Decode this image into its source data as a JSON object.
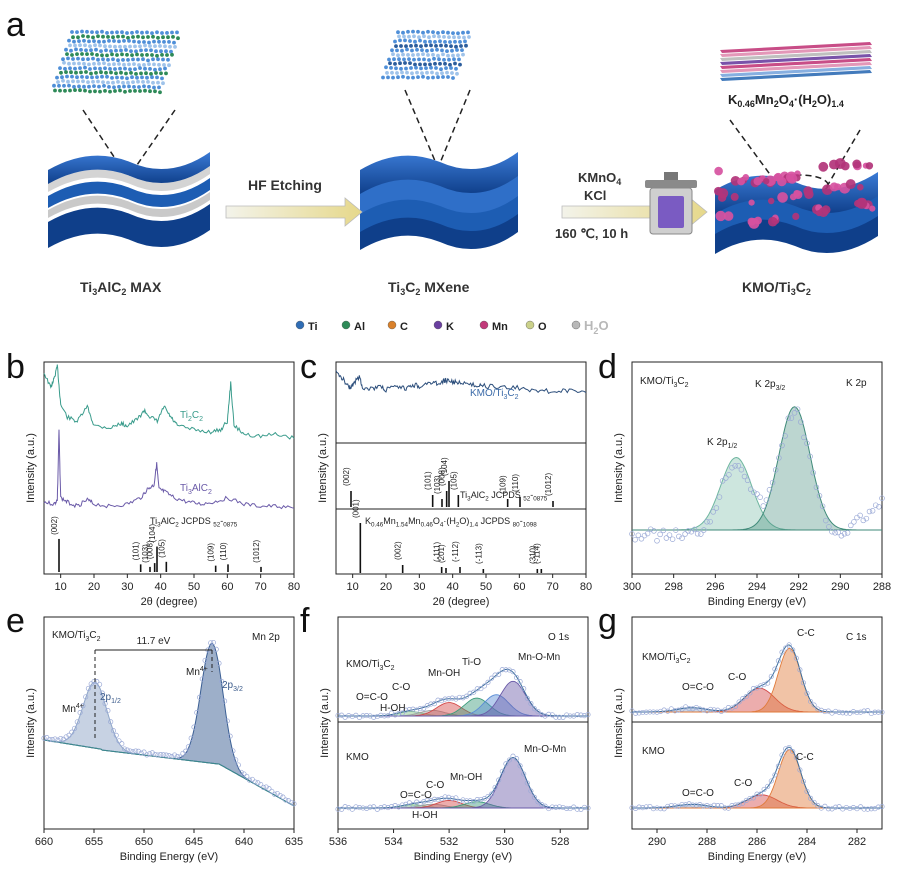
{
  "panel_a": {
    "letter": "a",
    "stage1_label": "Ti3AlC2 MAX",
    "stage2_label": "Ti3C2 MXene",
    "stage3_label": "KMO/Ti3C2",
    "arrow1_label": "HF Etching",
    "arrow2_line1": "KMnO4",
    "arrow2_line2": "KCl",
    "arrow2_line3": "160 ℃, 10 h",
    "formula": "K0.46Mn2O4·(H2O)1.4",
    "legend": [
      {
        "label": "Ti",
        "color": "#2f6db5"
      },
      {
        "label": "Al",
        "color": "#2e8a58"
      },
      {
        "label": "C",
        "color": "#d9802a"
      },
      {
        "label": "K",
        "color": "#6a3fa0"
      },
      {
        "label": "Mn",
        "color": "#c23a7a"
      },
      {
        "label": "O",
        "color": "#cbd18a"
      },
      {
        "label": "H2O",
        "color": "#b8b8b8"
      }
    ]
  },
  "chart_data": [
    {
      "panel": "b",
      "type": "line",
      "xlabel": "2θ (degree)",
      "ylabel": "Intensity (a.u.)",
      "xlim": [
        5,
        80
      ],
      "xticks": [
        10,
        20,
        30,
        40,
        50,
        60,
        70,
        80
      ],
      "series": [
        {
          "name": "Ti2C2",
          "color": "#3a9c8c",
          "x": [
            5,
            7,
            8,
            9,
            10,
            12,
            15,
            18,
            20,
            25,
            28,
            30,
            33,
            35,
            37,
            39,
            41,
            43,
            45,
            50,
            55,
            58,
            60,
            61,
            62,
            65,
            70,
            75,
            80
          ],
          "y": [
            0.95,
            0.88,
            0.92,
            0.98,
            0.8,
            0.74,
            0.72,
            0.79,
            0.7,
            0.69,
            0.71,
            0.7,
            0.73,
            0.77,
            0.74,
            0.72,
            0.79,
            0.74,
            0.7,
            0.68,
            0.67,
            0.68,
            0.72,
            0.9,
            0.7,
            0.66,
            0.65,
            0.66,
            0.64
          ]
        },
        {
          "name": "Ti3AlC2",
          "color": "#6a5aa8",
          "x": [
            5,
            8,
            9,
            9.5,
            10,
            12,
            15,
            18,
            20,
            25,
            30,
            34,
            36,
            38,
            38.8,
            39.5,
            41,
            44,
            48,
            52,
            56,
            60,
            65,
            70,
            75,
            80
          ],
          "y": [
            0.34,
            0.33,
            0.35,
            0.68,
            0.36,
            0.34,
            0.32,
            0.35,
            0.33,
            0.32,
            0.33,
            0.36,
            0.4,
            0.42,
            0.52,
            0.4,
            0.39,
            0.36,
            0.34,
            0.33,
            0.34,
            0.36,
            0.33,
            0.32,
            0.32,
            0.31
          ]
        }
      ],
      "reference_label": "Ti3AlC2 JCPDS # 52-0875",
      "reference_peaks": [
        {
          "x": 9.5,
          "h": 0.26,
          "label": "(002)"
        },
        {
          "x": 34.0,
          "h": 0.06,
          "label": "(101)"
        },
        {
          "x": 36.8,
          "h": 0.04,
          "label": "(103)"
        },
        {
          "x": 38.9,
          "h": 0.2,
          "label": "(104)"
        },
        {
          "x": 38.2,
          "h": 0.07,
          "label": "(008)"
        },
        {
          "x": 41.7,
          "h": 0.08,
          "label": "(105)"
        },
        {
          "x": 56.5,
          "h": 0.05,
          "label": "(109)"
        },
        {
          "x": 60.2,
          "h": 0.06,
          "label": "(110)"
        },
        {
          "x": 70.1,
          "h": 0.04,
          "label": "(1012)"
        }
      ]
    },
    {
      "panel": "c",
      "type": "line",
      "xlabel": "2θ (degree)",
      "ylabel": "Intensity (a.u.)",
      "xlim": [
        5,
        80
      ],
      "xticks": [
        10,
        20,
        30,
        40,
        50,
        60,
        70,
        80
      ],
      "series": [
        {
          "name": "KMO/Ti3C2",
          "color": "#2d4f7c",
          "x": [
            5,
            7,
            9,
            10,
            12,
            13,
            15,
            18,
            20,
            23,
            26,
            28,
            30,
            33,
            35,
            37,
            38,
            40,
            42,
            45,
            48,
            50,
            55,
            60,
            65,
            70,
            75,
            80
          ],
          "y": [
            0.88,
            0.82,
            0.72,
            0.74,
            0.84,
            0.72,
            0.7,
            0.72,
            0.69,
            0.72,
            0.7,
            0.75,
            0.73,
            0.77,
            0.76,
            0.78,
            0.8,
            0.77,
            0.78,
            0.74,
            0.75,
            0.73,
            0.72,
            0.71,
            0.69,
            0.67,
            0.68,
            0.66
          ]
        }
      ],
      "reference_label_1": "Ti3AlC2 JCPDS # 52-0875",
      "reference_label_2": "K0.46Mn1.54Mn0.46O4·(H2O)1.4 JCPDS # 80-1098",
      "reference_peaks_1": [
        {
          "x": 9.5,
          "label": "(002)"
        },
        {
          "x": 34.0,
          "label": "(101)"
        },
        {
          "x": 36.8,
          "label": "(103)"
        },
        {
          "x": 38.2,
          "label": "(008)"
        },
        {
          "x": 38.9,
          "label": "(104)"
        },
        {
          "x": 41.7,
          "label": "(105)"
        },
        {
          "x": 56.5,
          "label": "(109)"
        },
        {
          "x": 60.2,
          "label": "(110)"
        },
        {
          "x": 70.1,
          "label": "(1012)"
        }
      ],
      "reference_peaks_2": [
        {
          "x": 12.3,
          "label": "(001)"
        },
        {
          "x": 25.0,
          "label": "(002)"
        },
        {
          "x": 36.7,
          "label": "(-111)"
        },
        {
          "x": 38.0,
          "label": "(201)"
        },
        {
          "x": 42.2,
          "label": "(-112)"
        },
        {
          "x": 49.2,
          "label": "(-113)"
        },
        {
          "x": 65.4,
          "label": "(310)"
        },
        {
          "x": 66.6,
          "label": "(-114)"
        }
      ]
    },
    {
      "panel": "d",
      "type": "line",
      "title": "KMO/Ti3C2",
      "region": "K 2p",
      "xlabel": "Binding Energy (eV)",
      "ylabel": "Intensity (a.u.)",
      "xlim": [
        300,
        288
      ],
      "xticks": [
        300,
        298,
        296,
        294,
        292,
        290,
        288
      ],
      "peaks": [
        {
          "name": "K 2p1/2",
          "center": 295.0,
          "height": 0.5,
          "width": 0.75,
          "color": "#6fb6a0"
        },
        {
          "name": "K 2p3/2",
          "center": 292.2,
          "height": 0.85,
          "width": 0.75,
          "color": "#3f8a79"
        }
      ]
    },
    {
      "panel": "e",
      "type": "line",
      "title": "KMO/Ti3C2",
      "region": "Mn 2p",
      "xlabel": "Binding Energy (eV)",
      "ylabel": "Intensity (a.u.)",
      "xlim": [
        660,
        635
      ],
      "xticks": [
        660,
        655,
        650,
        645,
        640,
        635
      ],
      "splitting": "11.7 eV",
      "peaks": [
        {
          "name": "2p1/2",
          "ion": "Mn4+",
          "center": 654.9,
          "height": 0.55,
          "width": 1.2,
          "color": "#8fa6c8"
        },
        {
          "name": "2p3/2",
          "ion": "Mn4+",
          "center": 643.2,
          "height": 1.0,
          "width": 1.1,
          "color": "#3b5f94"
        }
      ]
    },
    {
      "panel": "f",
      "type": "line",
      "region": "O 1s",
      "xlabel": "Binding Energy (eV)",
      "ylabel": "Intensity (a.u.)",
      "xlim": [
        536,
        527
      ],
      "xticks": [
        536,
        534,
        532,
        530,
        528
      ],
      "samples": [
        {
          "name": "KMO/Ti3C2",
          "components": [
            {
              "name": "O=C-O",
              "center": 533.4,
              "height": 0.08,
              "color": "#7cc47f"
            },
            {
              "name": "H-OH",
              "center": 532.6,
              "height": 0.1,
              "color": "#a0a0a0"
            },
            {
              "name": "C-O",
              "center": 532.0,
              "height": 0.24,
              "color": "#d44a4a"
            },
            {
              "name": "Mn-OH",
              "center": 531.0,
              "height": 0.32,
              "color": "#3a9a7a"
            },
            {
              "name": "Ti-O",
              "center": 530.3,
              "height": 0.38,
              "color": "#5b8dd6"
            },
            {
              "name": "Mn-O-Mn",
              "center": 529.7,
              "height": 0.62,
              "color": "#6a5aa8"
            }
          ]
        },
        {
          "name": "KMO",
          "components": [
            {
              "name": "O=C-O",
              "center": 533.3,
              "height": 0.05,
              "color": "#7cc47f"
            },
            {
              "name": "H-OH",
              "center": 532.6,
              "height": 0.06,
              "color": "#a0a0a0"
            },
            {
              "name": "C-O",
              "center": 532.0,
              "height": 0.12,
              "color": "#d44a4a"
            },
            {
              "name": "Mn-OH",
              "center": 531.0,
              "height": 0.1,
              "color": "#3a9a7a"
            },
            {
              "name": "Mn-O-Mn",
              "center": 529.7,
              "height": 0.8,
              "color": "#6a5aa8"
            }
          ]
        }
      ]
    },
    {
      "panel": "g",
      "type": "line",
      "region": "C 1s",
      "xlabel": "Binding Energy (eV)",
      "ylabel": "Intensity (a.u.)",
      "xlim": [
        291,
        281
      ],
      "xticks": [
        290,
        288,
        286,
        284,
        282
      ],
      "samples": [
        {
          "name": "KMO/Ti3C2",
          "components": [
            {
              "name": "O=C-O",
              "center": 288.6,
              "height": 0.05,
              "color": "#8fa6c8"
            },
            {
              "name": "C-O",
              "center": 285.9,
              "height": 0.28,
              "color": "#d44a4a"
            },
            {
              "name": "C-C",
              "center": 284.7,
              "height": 0.75,
              "color": "#e07a3a"
            }
          ]
        },
        {
          "name": "KMO",
          "components": [
            {
              "name": "O=C-O",
              "center": 288.6,
              "height": 0.05,
              "color": "#8fa6c8"
            },
            {
              "name": "C-O",
              "center": 285.8,
              "height": 0.18,
              "color": "#d44a4a"
            },
            {
              "name": "C-C",
              "center": 284.7,
              "height": 0.8,
              "color": "#e07a3a"
            }
          ]
        }
      ]
    }
  ]
}
